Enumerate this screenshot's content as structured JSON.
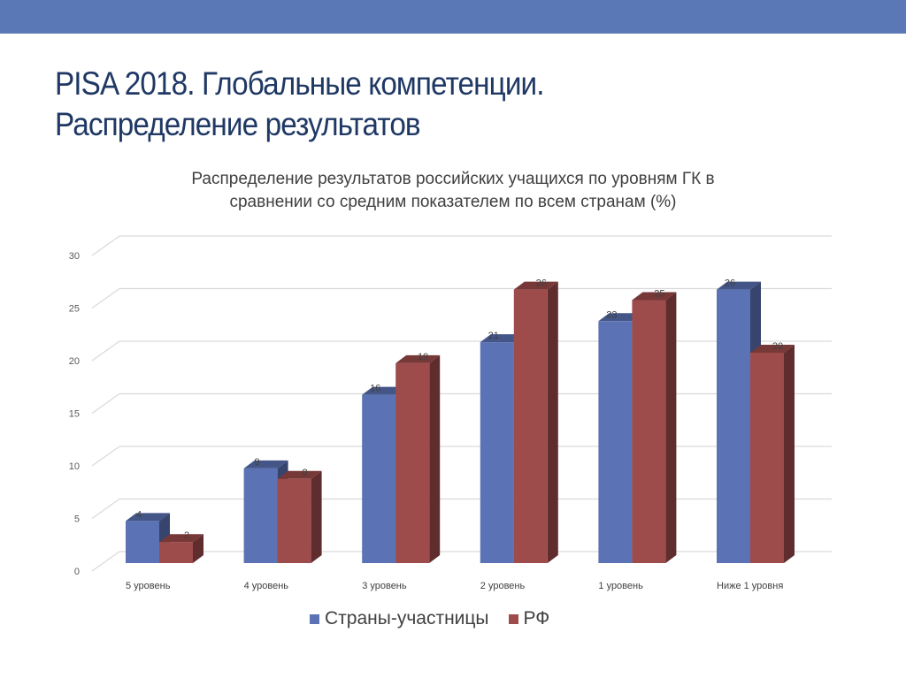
{
  "slide": {
    "title_line1": "PISA 2018. Глобальные компетенции.",
    "title_line2": "Распределение результатов"
  },
  "chart_data": {
    "type": "bar",
    "title": "Распределение результатов российских учащихся по уровням ГК в сравнении со средним показателем по всем странам (%)",
    "title_line1": "Распределение результатов российских учащихся по уровням ГК в",
    "title_line2": "сравнении со средним показателем по всем странам (%)",
    "categories": [
      "5 уровень",
      "4 уровень",
      "3 уровень",
      "2 уровень",
      "1 уровень",
      "Ниже 1 уровня"
    ],
    "series": [
      {
        "name": "Страны-участницы",
        "values": [
          4,
          9,
          16,
          21,
          23,
          26
        ],
        "color": "#5b72b5"
      },
      {
        "name": "РФ",
        "values": [
          2,
          8,
          19,
          26,
          25,
          20
        ],
        "color": "#9e4b4b"
      }
    ],
    "ylim": [
      0,
      30
    ],
    "yticks": [
      0,
      5,
      10,
      15,
      20,
      25,
      30
    ],
    "grid": true,
    "legend": "bottom",
    "style": "3d-clustered-column"
  }
}
